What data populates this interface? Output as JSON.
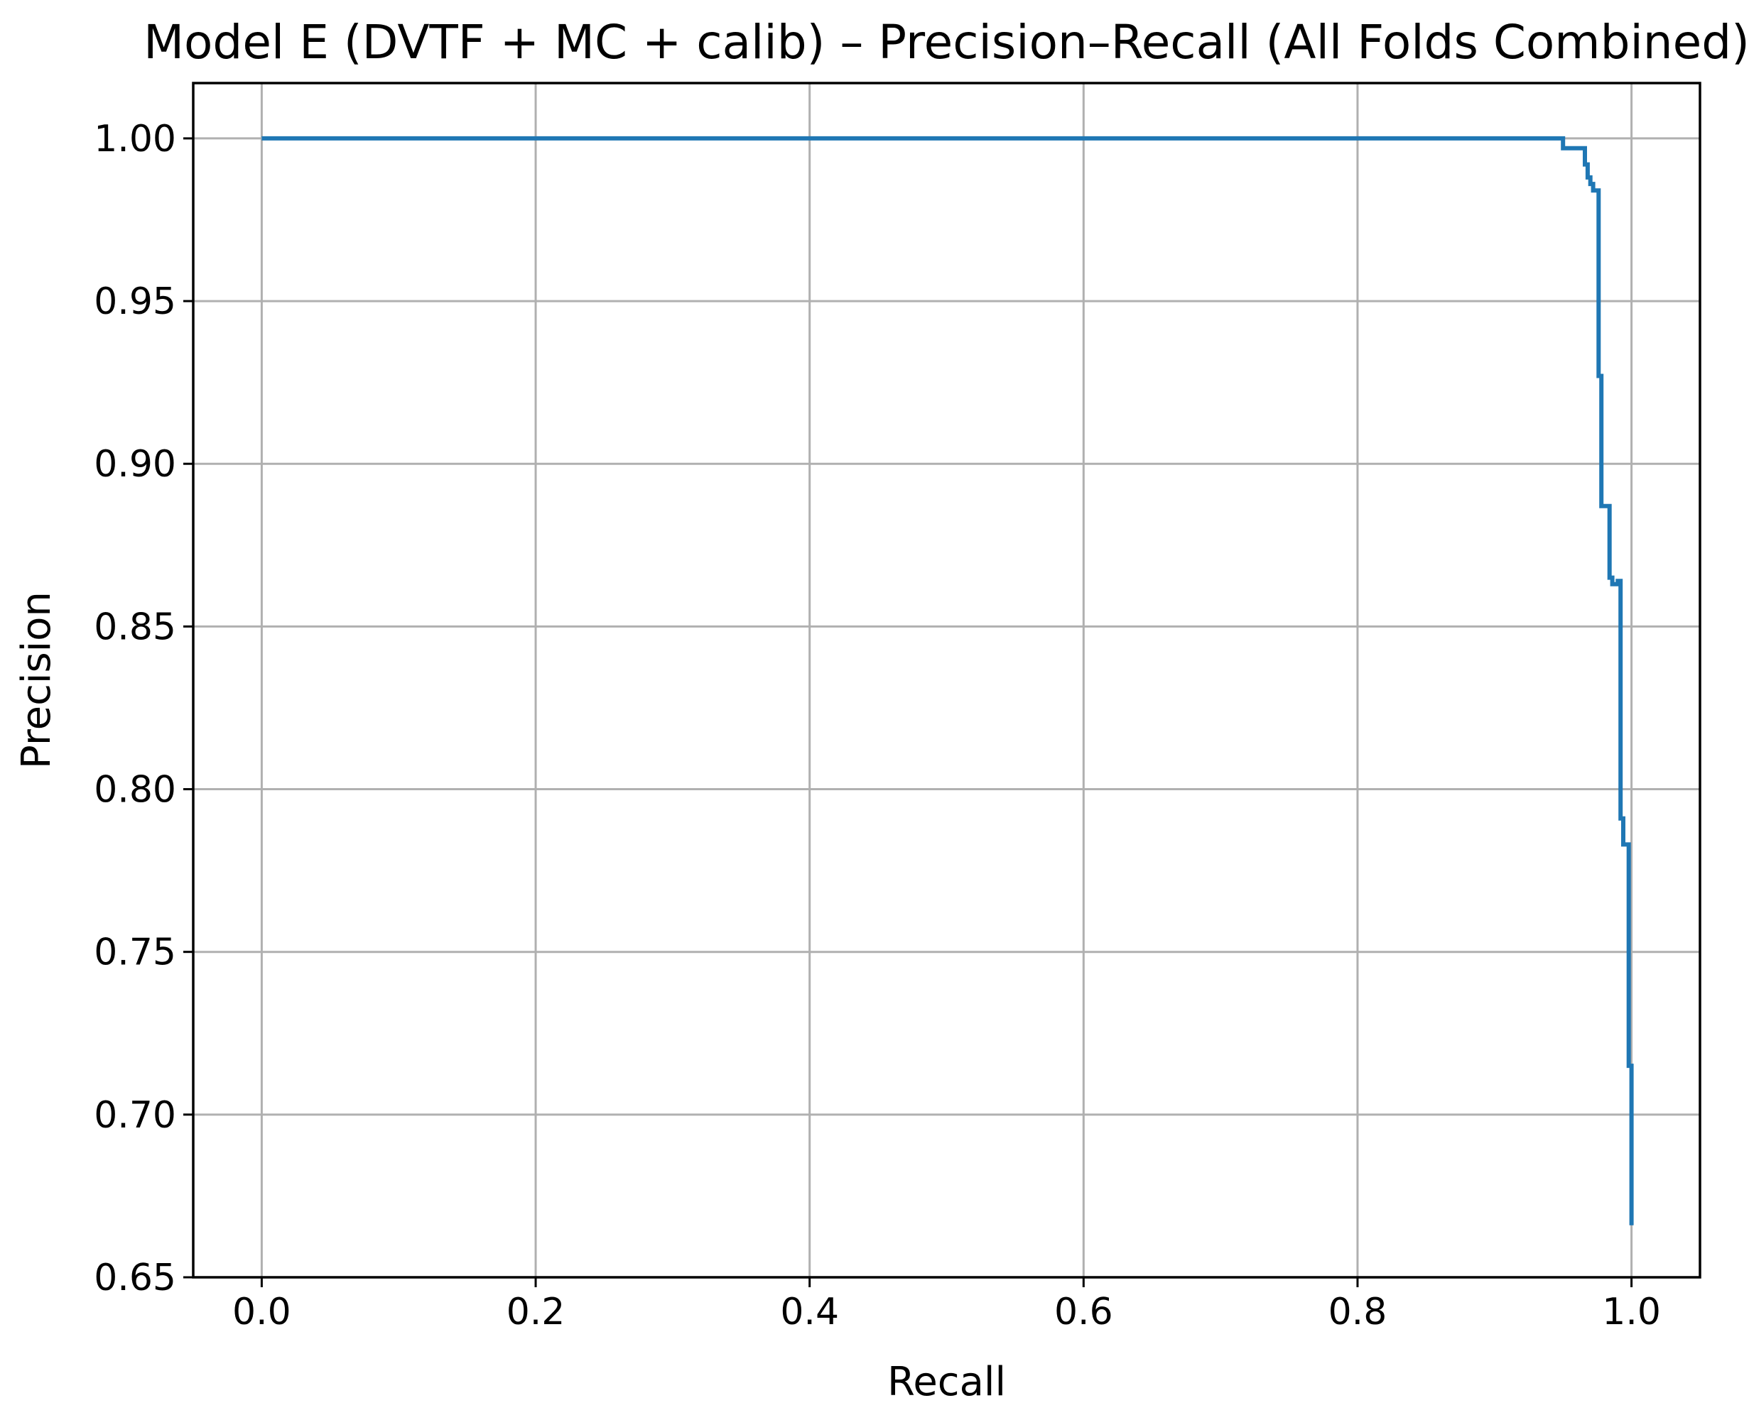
{
  "chart_data": {
    "type": "line",
    "title": "Model E (DVTF + MC + calib) – Precision–Recall (All Folds Combined)",
    "xlabel": "Recall",
    "ylabel": "Precision",
    "xlim": [
      -0.05,
      1.05
    ],
    "ylim": [
      0.65,
      1.017
    ],
    "xticks": [
      "0.0",
      "0.2",
      "0.4",
      "0.6",
      "0.8",
      "1.0"
    ],
    "yticks": [
      "0.65",
      "0.70",
      "0.75",
      "0.80",
      "0.85",
      "0.90",
      "0.95",
      "1.00"
    ],
    "grid": true,
    "series": [
      {
        "color": "#1f77b4",
        "x": [
          0.0,
          0.95,
          0.95,
          0.966,
          0.966,
          0.968,
          0.968,
          0.97,
          0.97,
          0.972,
          0.972,
          0.976,
          0.976,
          0.978,
          0.978,
          0.98,
          0.98,
          0.984,
          0.984,
          0.986,
          0.986,
          0.99,
          0.99,
          0.992,
          0.992,
          0.994,
          0.994,
          0.996,
          0.996,
          0.998,
          0.998,
          1.0,
          1.0
        ],
        "y": [
          1.0,
          1.0,
          0.997,
          0.997,
          0.992,
          0.992,
          0.988,
          0.988,
          0.986,
          0.986,
          0.984,
          0.984,
          0.927,
          0.927,
          0.887,
          0.887,
          0.887,
          0.887,
          0.865,
          0.865,
          0.863,
          0.863,
          0.864,
          0.864,
          0.791,
          0.791,
          0.783,
          0.783,
          0.783,
          0.783,
          0.715,
          0.715,
          0.666
        ]
      }
    ]
  }
}
